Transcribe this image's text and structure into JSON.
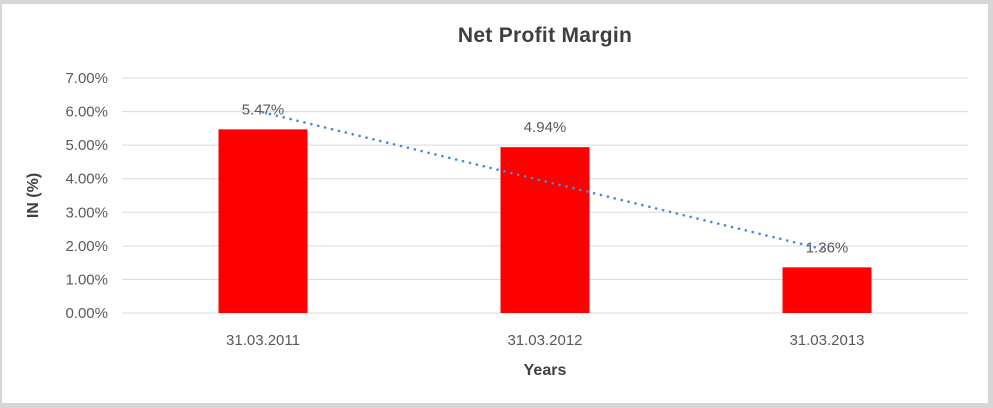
{
  "chart_data": {
    "type": "bar",
    "title": "Net Profit Margin",
    "xlabel": "Years",
    "ylabel": "IN (%)",
    "categories": [
      "31.03.2011",
      "31.03.2012",
      "31.03.2013"
    ],
    "values": [
      5.47,
      4.94,
      1.36
    ],
    "data_labels": [
      "5.47%",
      "4.94%",
      "1.36%"
    ],
    "y_tick_labels": [
      "0.00%",
      "1.00%",
      "2.00%",
      "3.00%",
      "4.00%",
      "5.00%",
      "6.00%",
      "7.00%"
    ],
    "ylim": [
      0,
      7
    ],
    "grid": true,
    "legend": "none",
    "trendline": {
      "type": "linear",
      "style": "dotted"
    },
    "colors": {
      "bar": "#ff0000",
      "trendline": "#4a89d8",
      "gridline": "#d9d9d9",
      "tick_text": "#595959",
      "axis_title_text": "#3f3f3f",
      "title_text": "#3f3f3f",
      "frame_border": "#d6d6d6",
      "background": "#ffffff"
    }
  }
}
